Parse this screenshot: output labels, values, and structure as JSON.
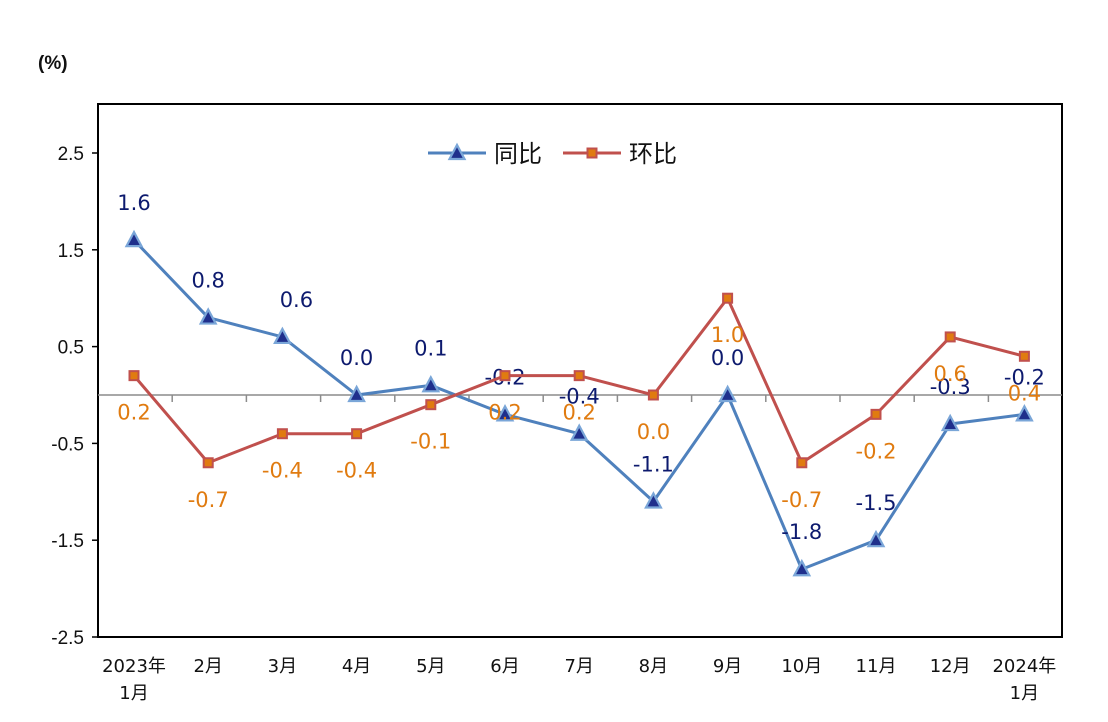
{
  "chart_data": {
    "type": "line",
    "unit_label": "(%)",
    "categories": [
      [
        "2023年",
        "1月"
      ],
      [
        "2月"
      ],
      [
        "3月"
      ],
      [
        "4月"
      ],
      [
        "5月"
      ],
      [
        "6月"
      ],
      [
        "7月"
      ],
      [
        "8月"
      ],
      [
        "9月"
      ],
      [
        "10月"
      ],
      [
        "11月"
      ],
      [
        "12月"
      ],
      [
        "2024年",
        "1月"
      ]
    ],
    "ylim": [
      -2.5,
      3.0
    ],
    "yticks": [
      2.5,
      1.5,
      0.5,
      -0.5,
      -1.5,
      -2.5
    ],
    "ytick_labels": [
      "2.5",
      "1.5",
      "0.5",
      "-0.5",
      "-1.5",
      "-2.5"
    ],
    "legend_position": "top-center",
    "series": [
      {
        "name": "同比",
        "color": "#4f81bd",
        "label_color": "#0d1a6e",
        "marker": "triangle",
        "values": [
          1.6,
          0.8,
          0.6,
          0.0,
          0.1,
          -0.2,
          -0.4,
          -1.1,
          0.0,
          -1.8,
          -1.5,
          -0.3,
          -0.2
        ],
        "labels": [
          "1.6",
          "0.8",
          "0.6",
          "0.0",
          "0.1",
          "-0.2",
          "-0.4",
          "-1.1",
          "0.0",
          "-1.8",
          "-1.5",
          "-0.3",
          "-0.2"
        ]
      },
      {
        "name": "环比",
        "color": "#c0504d",
        "label_color": "#e07b10",
        "marker": "square",
        "values": [
          0.2,
          -0.7,
          -0.4,
          -0.4,
          -0.1,
          0.2,
          0.2,
          0.0,
          1.0,
          -0.7,
          -0.2,
          0.6,
          0.4
        ],
        "labels": [
          "0.2",
          "-0.7",
          "-0.4",
          "-0.4",
          "-0.1",
          "0.2",
          "0.2",
          "0.0",
          "1.0",
          "-0.7",
          "-0.2",
          "0.6",
          "0.4"
        ]
      }
    ]
  }
}
